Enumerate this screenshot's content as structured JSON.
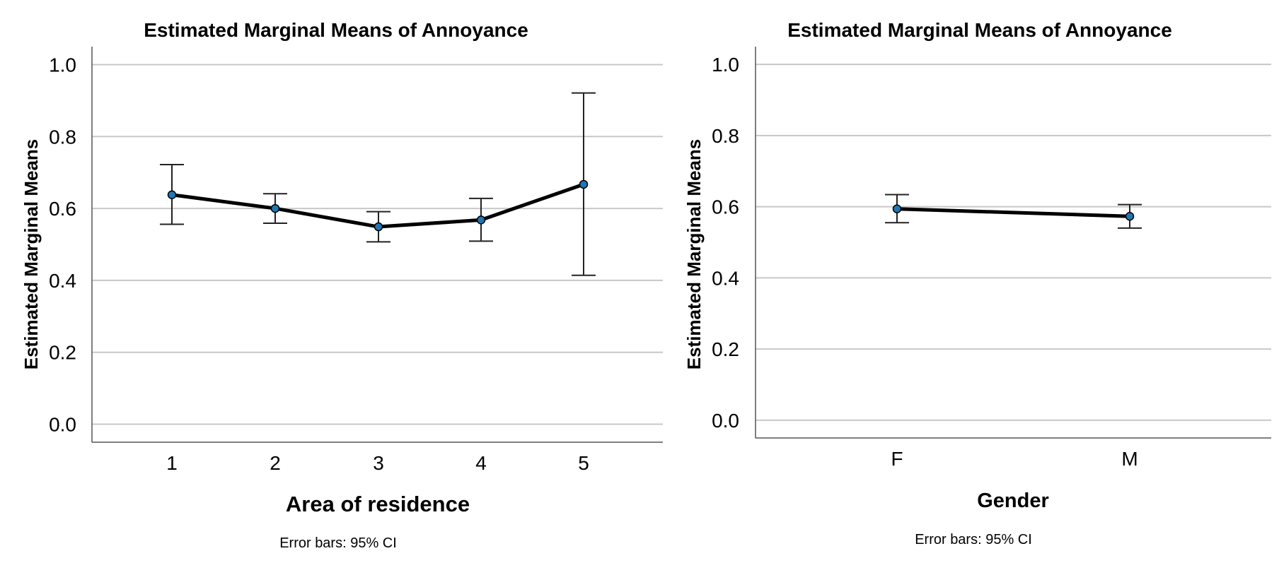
{
  "chart_data": [
    {
      "type": "line",
      "title": "Estimated Marginal Means of Annoyance",
      "xlabel": "Area of residence",
      "ylabel": "Estimated Marginal Means",
      "ylim": [
        -0.05,
        1.05
      ],
      "yticks": [
        "0.0",
        "0.2",
        "0.4",
        "0.6",
        "0.8",
        "1.0"
      ],
      "categories": [
        "1",
        "2",
        "3",
        "4",
        "5"
      ],
      "series": [
        {
          "values": [
            0.638,
            0.6,
            0.549,
            0.568,
            0.667
          ],
          "ci_lower": [
            0.556,
            0.559,
            0.507,
            0.509,
            0.414
          ],
          "ci_upper": [
            0.722,
            0.641,
            0.591,
            0.628,
            0.921
          ]
        }
      ],
      "grid": true,
      "footnote": "Error bars: 95% CI"
    },
    {
      "type": "line",
      "title": "Estimated Marginal Means of Annoyance",
      "xlabel": "Gender",
      "ylabel": "Estimated Marginal Means",
      "ylim": [
        -0.05,
        1.05
      ],
      "yticks": [
        "0.0",
        "0.2",
        "0.4",
        "0.6",
        "0.8",
        "1.0"
      ],
      "categories": [
        "F",
        "M"
      ],
      "series": [
        {
          "values": [
            0.594,
            0.573
          ],
          "ci_lower": [
            0.555,
            0.54
          ],
          "ci_upper": [
            0.634,
            0.606
          ]
        }
      ],
      "grid": true,
      "footnote": "Error bars: 95% CI"
    }
  ],
  "colors": {
    "line": "#000000",
    "marker_fill": "#1f77b4",
    "grid": "#c8c8c8",
    "axis": "#555555"
  }
}
